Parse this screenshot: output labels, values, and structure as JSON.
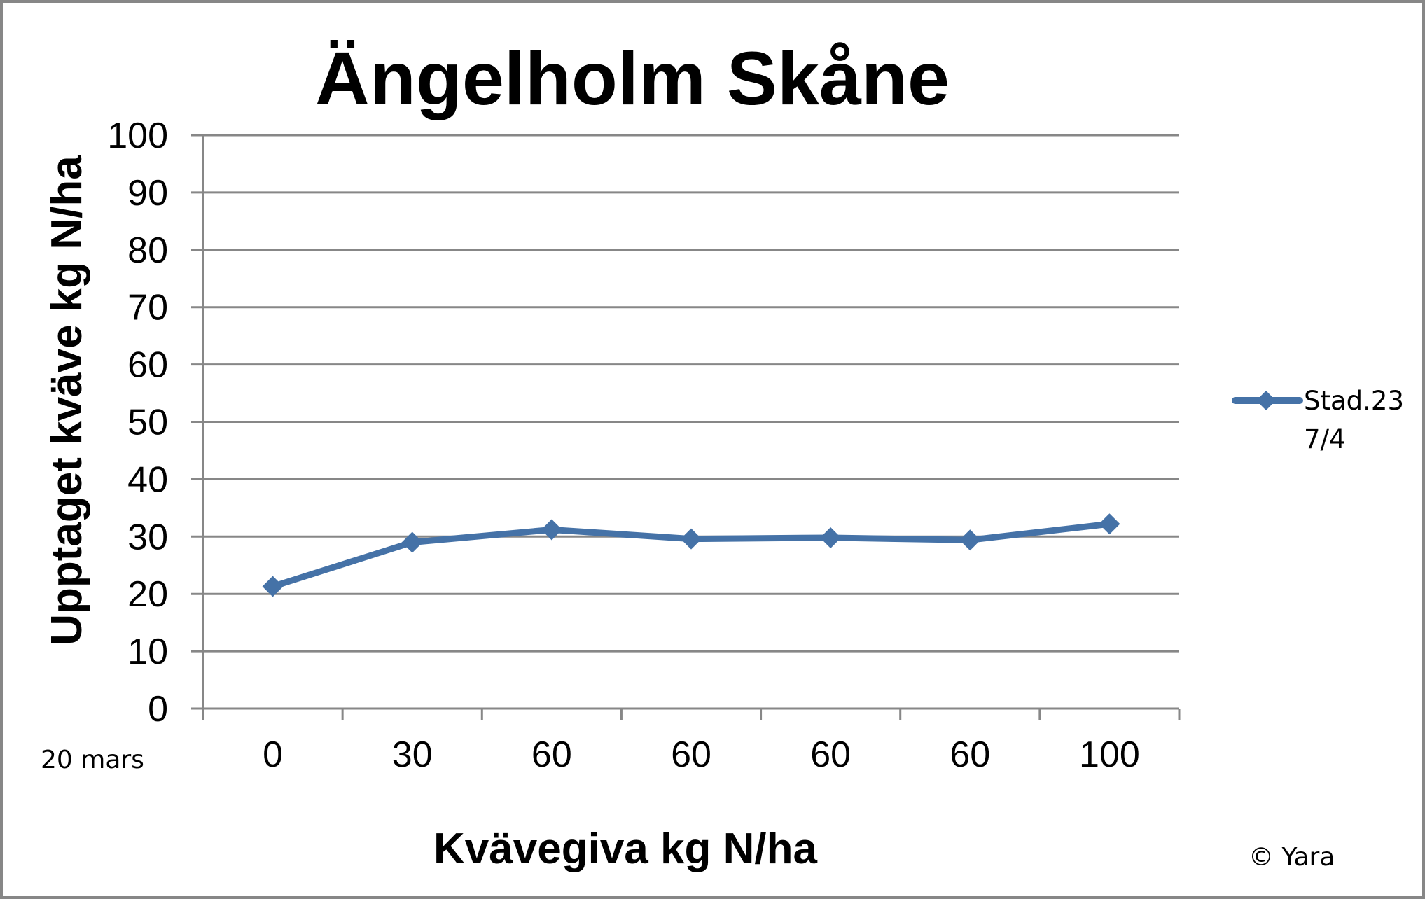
{
  "chart_data": {
    "type": "line",
    "title": "Ängelholm Skåne",
    "xlabel": "Kvävegiva kg N/ha",
    "ylabel": "Upptaget kväve kg N/ha",
    "categories": [
      "0",
      "30",
      "60",
      "60",
      "60",
      "60",
      "100"
    ],
    "x_prefix_label": "20 mars",
    "series": [
      {
        "name": "Stad.23 7/4",
        "name_lines": [
          "Stad.23",
          "7/4"
        ],
        "color": "#4572A7",
        "marker": "diamond",
        "values": [
          21.3,
          29.0,
          31.2,
          29.6,
          29.8,
          29.4,
          32.2
        ]
      }
    ],
    "ylim": [
      0,
      100
    ],
    "yticks": [
      0,
      10,
      20,
      30,
      40,
      50,
      60,
      70,
      80,
      90,
      100
    ],
    "grid": true,
    "legend_position": "right",
    "annotations": [
      "© Yara"
    ]
  },
  "colors": {
    "gridline": "#878787",
    "axis": "#878787",
    "border": "#878787",
    "series": "#4572A7"
  }
}
